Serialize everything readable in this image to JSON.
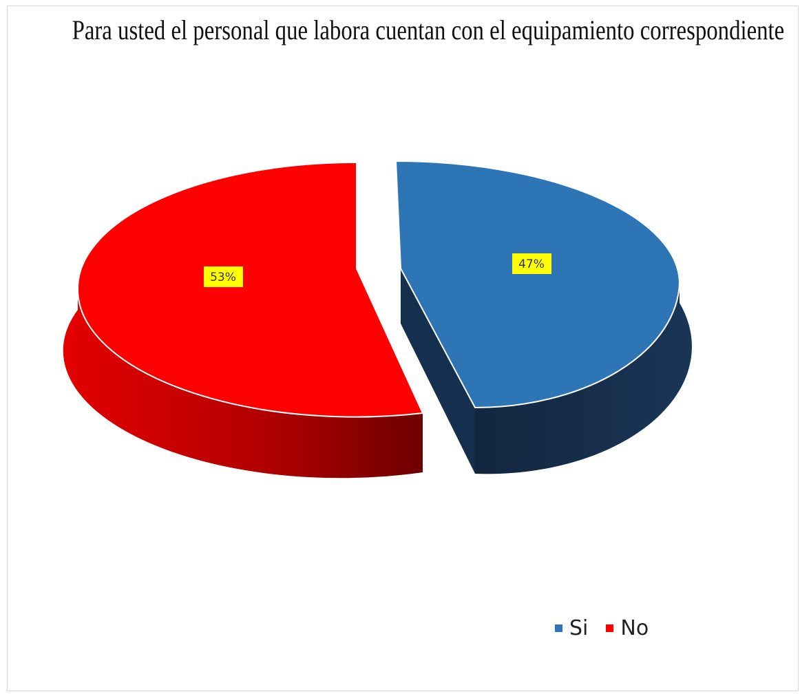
{
  "chart_data": {
    "type": "pie",
    "title": "Para usted el personal que labora cuentan con el equipamiento correspondiente",
    "categories": [
      "Si",
      "No"
    ],
    "values": [
      47,
      53
    ],
    "labels": [
      "47%",
      "53%"
    ],
    "colors": [
      "#2e75b6",
      "#ff0000"
    ],
    "legend": "bottom-right",
    "label_background": "#ffff00"
  }
}
